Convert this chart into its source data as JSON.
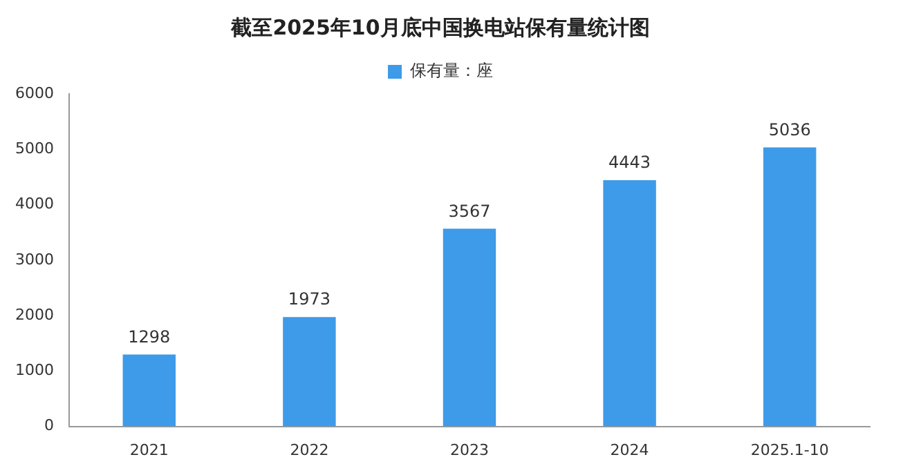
{
  "chart_data": {
    "type": "bar",
    "title": "截至2025年10月底中国换电站保有量统计图",
    "categories": [
      "2021",
      "2022",
      "2023",
      "2024",
      "2025.1-10"
    ],
    "series": [
      {
        "name": "保有量：座",
        "color": "#3d9be9",
        "values": [
          1298,
          1973,
          3567,
          4443,
          5036
        ]
      }
    ],
    "ylim": [
      0,
      6000
    ],
    "yticks": [
      0,
      1000,
      2000,
      3000,
      4000,
      5000,
      6000
    ],
    "grid": false,
    "legend": "top",
    "data_labels": true
  }
}
